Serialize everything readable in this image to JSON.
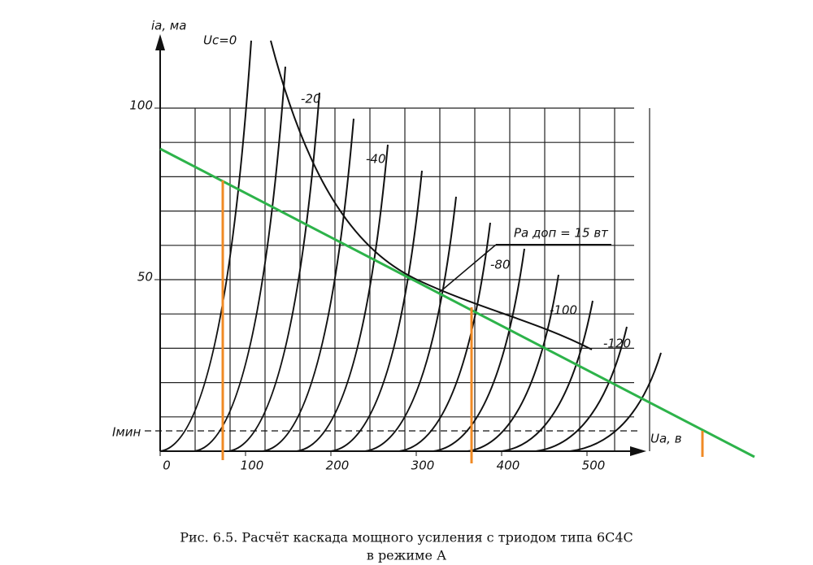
{
  "figure": {
    "y_axis_label": "iа, ма",
    "x_axis_label": "Uа, в",
    "i_min_label": "Iмин",
    "grid_voltage_label": "Uс=0",
    "curve_labels": [
      "-20",
      "-40",
      "-80",
      "-100",
      "-120"
    ],
    "power_label": "Pа доп = 15 вт",
    "x_ticks": [
      0,
      100,
      200,
      300,
      400,
      500
    ],
    "y_ticks": [
      50,
      100
    ],
    "caption": [
      "Рис. 6.5. Расчёт каскада мощного усиления с триодом типа 6С4С",
      "в режиме А"
    ]
  }
}
